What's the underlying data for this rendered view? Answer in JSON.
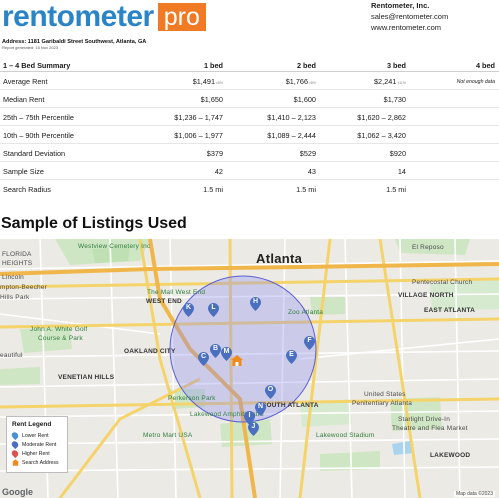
{
  "header": {
    "logo_text": "rentometer",
    "logo_pro": "pro",
    "company_name": "Rentometer, Inc.",
    "company_email": "sales@rentometer.com",
    "company_site": "www.rentometer.com",
    "address": "Address: 1181 Garibaldi Street Southwest, Atlanta, GA",
    "generated": "Report generated: 15 Nov 2023"
  },
  "summary": {
    "columns": [
      "1 – 4 Bed Summary",
      "1 bed",
      "2 bed",
      "3 bed",
      "4 bed"
    ],
    "rows": [
      {
        "label": "Average Rent",
        "v1": "$1,491",
        "s1": "±8%",
        "v2": "$1,766",
        "s2": "±8%",
        "v3": "$2,241",
        "s3": "±11%",
        "v4": "Not enough data"
      },
      {
        "label": "Median Rent",
        "v1": "$1,650",
        "v2": "$1,600",
        "v3": "$1,730",
        "v4": ""
      },
      {
        "label": "25th – 75th Percentile",
        "v1": "$1,236 – 1,747",
        "v2": "$1,410 – 2,123",
        "v3": "$1,620 – 2,862",
        "v4": ""
      },
      {
        "label": "10th – 90th Percentile",
        "v1": "$1,006 – 1,977",
        "v2": "$1,089 – 2,444",
        "v3": "$1,062 – 3,420",
        "v4": ""
      },
      {
        "label": "Standard Deviation",
        "v1": "$379",
        "v2": "$529",
        "v3": "$920",
        "v4": ""
      },
      {
        "label": "Sample Size",
        "v1": "42",
        "v2": "43",
        "v3": "14",
        "v4": ""
      },
      {
        "label": "Search Radius",
        "v1": "1.5 mi",
        "v2": "1.5 mi",
        "v3": "1.5 mi",
        "v4": ""
      }
    ]
  },
  "section_title": "Sample of Listings Used",
  "map": {
    "labels": {
      "atlanta": "Atlanta",
      "westview": "Westview Cemetery Inc",
      "elreposo": "El Reposo",
      "florida": "FLORIDA",
      "heights": "HEIGHTS",
      "lincoln": "Lincoln",
      "hampton": "mpton-Beecher",
      "hills": "Hills Park",
      "mallwestend": "The Mall West End",
      "westend": "WEST END",
      "zooatlanta": "Zoo Atlanta",
      "fifthstreet": "5th Street",
      "pentecostal": "Pentecostal Church",
      "villagenorth": "VILLAGE NORTH",
      "eastatlanta": "EAST ATLANTA",
      "johnwhite": "John A. White Golf",
      "courseparkfun": "Course & Park",
      "oakland": "OAKLAND CITY",
      "beautiful": "eautiful",
      "venetian": "VENETIAN HILLS",
      "perkerson": "Perkerson Park",
      "southatlanta": "SOUTH ATLANTA",
      "lakewood": "Lakewood Amphitheatre",
      "metromart": "Metro Mart USA",
      "lakewoodstadium": "Lakewood Stadium",
      "penitentiary": "United States",
      "penitentiary2": "Penitentiary Atlanta",
      "starlight": "Starlight Drive-In",
      "starlight2": "Theatre and Flea Market",
      "lakewoodheights": "LAKEWOOD"
    },
    "pins": [
      "K",
      "L",
      "H",
      "B",
      "C",
      "M",
      "F",
      "E",
      "O",
      "N",
      "I",
      "J"
    ],
    "legend": {
      "title": "Rent Legend",
      "items": [
        "Lower Rent",
        "Moderate Rent",
        "Higher Rent",
        "Search Address"
      ],
      "colors": [
        "#4a8fd1",
        "#4a6fc0",
        "#d9534f",
        "#f08a1c"
      ]
    },
    "google": "Google",
    "mapdata": "Map data ©2023"
  }
}
